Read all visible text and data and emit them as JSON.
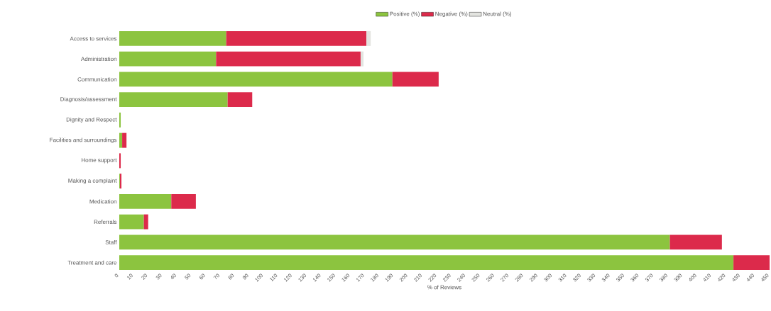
{
  "chart_data": {
    "type": "bar",
    "orientation": "horizontal",
    "stacked": true,
    "xlabel": "% of Reviews",
    "categories": [
      "Access to services",
      "Administration",
      "Communication",
      "Diagnosis/assessment",
      "Dignity and Respect",
      "Facilities and surroundings",
      "Home support",
      "Making a complaint",
      "Medication",
      "Referrals",
      "Staff",
      "Treatment and care"
    ],
    "series": [
      {
        "name": "Positive (%)",
        "color": "#8cc43f",
        "values": [
          74,
          67,
          189,
          75,
          1,
          2,
          0,
          0.5,
          36,
          17,
          381,
          425
        ]
      },
      {
        "name": "Negative (%)",
        "color": "#dc2a4b",
        "values": [
          97,
          100,
          32,
          17,
          null,
          3,
          1,
          1,
          17,
          3,
          36,
          25
        ]
      },
      {
        "name": "Neutral (%)",
        "color": "#e3e4e0",
        "values": [
          3,
          2,
          null,
          null,
          null,
          null,
          null,
          null,
          null,
          null,
          null,
          null
        ]
      }
    ],
    "xlim": [
      0,
      450
    ],
    "xticks": [
      0,
      10,
      20,
      30,
      40,
      50,
      60,
      70,
      80,
      90,
      100,
      110,
      120,
      130,
      140,
      150,
      160,
      170,
      180,
      190,
      200,
      210,
      220,
      230,
      240,
      250,
      260,
      270,
      280,
      290,
      300,
      310,
      320,
      330,
      340,
      350,
      360,
      370,
      380,
      390,
      400,
      410,
      420,
      430,
      440,
      450
    ],
    "grid": false,
    "legend": "top"
  }
}
